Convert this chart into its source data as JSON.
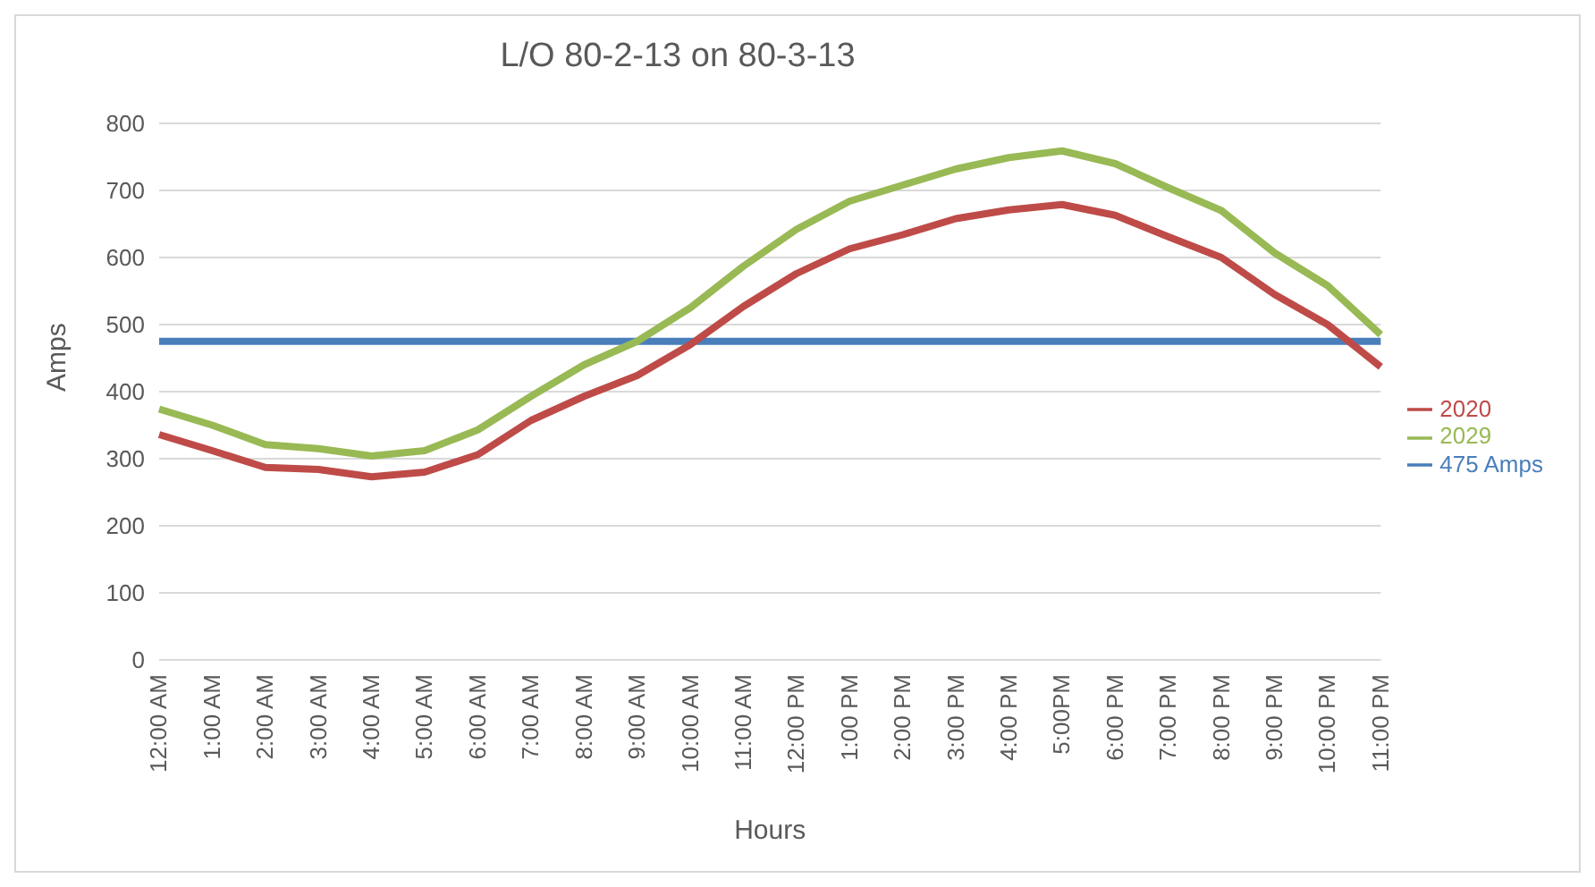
{
  "chart_data": {
    "type": "line",
    "title": "L/O 80-2-13 on 80-3-13",
    "xlabel": "Hours",
    "ylabel": "Amps",
    "categories": [
      "12:00 AM",
      "1:00 AM",
      "2:00 AM",
      "3:00 AM",
      "4:00 AM",
      "5:00 AM",
      "6:00 AM",
      "7:00 AM",
      "8:00 AM",
      "9:00 AM",
      "10:00 AM",
      "11:00 AM",
      "12:00 PM",
      "1:00 PM",
      "2:00 PM",
      "3:00 PM",
      "4:00 PM",
      "5:00PM",
      "6:00 PM",
      "7:00 PM",
      "8:00 PM",
      "9:00 PM",
      "10:00 PM",
      "11:00 PM"
    ],
    "series": [
      {
        "name": "475 Amps",
        "color": "#4a7ebb",
        "values": [
          475,
          475,
          475,
          475,
          475,
          475,
          475,
          475,
          475,
          475,
          475,
          475,
          475,
          475,
          475,
          475,
          475,
          475,
          475,
          475,
          475,
          475,
          475,
          475
        ]
      },
      {
        "name": "2020",
        "color": "#be4b48",
        "values": [
          336,
          312,
          287,
          284,
          273,
          280,
          306,
          357,
          393,
          424,
          470,
          527,
          576,
          613,
          634,
          658,
          671,
          679,
          663,
          631,
          600,
          545,
          500,
          437
        ]
      },
      {
        "name": "2029",
        "color": "#98b954",
        "values": [
          374,
          350,
          321,
          315,
          304,
          312,
          343,
          393,
          440,
          475,
          525,
          587,
          642,
          684,
          708,
          732,
          749,
          759,
          740,
          704,
          670,
          607,
          558,
          485
        ]
      }
    ],
    "ylim": [
      0,
      800
    ],
    "yticks": [
      0,
      100,
      200,
      300,
      400,
      500,
      600,
      700,
      800
    ],
    "grid": "y",
    "legend": "right",
    "marker": "none",
    "line_style": "solid"
  }
}
